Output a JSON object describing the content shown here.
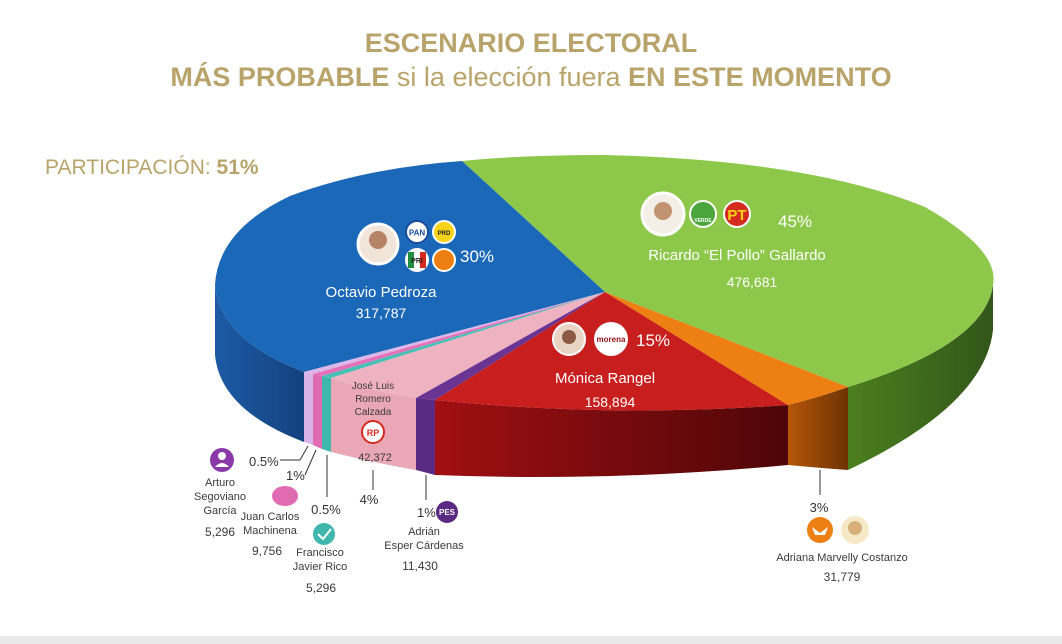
{
  "header": {
    "line1": "ESCENARIO ELECTORAL",
    "line2_bold_a": "MÁS PROBABLE",
    "line2_regular": " si la elección fuera ",
    "line2_bold_b": "EN ESTE MOMENTO"
  },
  "participation": {
    "label": "PARTICIPACIÓN: ",
    "value": "51%"
  },
  "colors": {
    "gold": "#b8a46a",
    "pedroza": "#1b67b8",
    "gallardo": "#8dc84b",
    "rangel": "#c81e1e",
    "costanzo": "#ee7f12",
    "esper": "#5b2a82",
    "romero": "#eaa7b6",
    "rico": "#3fb7ad",
    "machinena": "#e06bb3",
    "segoviano": "#dcb6e8"
  },
  "chart_data": {
    "type": "pie",
    "title": "ESCENARIO ELECTORAL MÁS PROBABLE si la elección fuera EN ESTE MOMENTO",
    "participation": "51%",
    "slices": [
      {
        "name": "Octavio Pedroza",
        "percent": "30%",
        "votes": "317,787",
        "parties": [
          "PAN",
          "PRD",
          "PRI",
          "CP"
        ],
        "color": "#1b67b8"
      },
      {
        "name": "Ricardo “El Pollo” Gallardo",
        "percent": "45%",
        "votes": "476,681",
        "parties": [
          "VERDE",
          "PT"
        ],
        "color": "#8dc84b"
      },
      {
        "name": "Mónica Rangel",
        "percent": "15%",
        "votes": "158,894",
        "parties": [
          "morena"
        ],
        "color": "#c81e1e"
      },
      {
        "name": "Adriana Marvelly Costanzo",
        "percent": "3%",
        "votes": "31,779",
        "parties": [
          "MC"
        ],
        "color": "#ee7f12"
      },
      {
        "name": "Adrián Esper Cárdenas",
        "percent": "1%",
        "votes": "11,430",
        "parties": [
          "PES"
        ],
        "color": "#5b2a82"
      },
      {
        "name": "José Luis Romero Calzada",
        "percent": "4%",
        "votes": "42,372",
        "parties": [
          "RP"
        ],
        "color": "#eaa7b6"
      },
      {
        "name": "Francisco Javier Rico",
        "percent": "0.5%",
        "votes": "5,296",
        "parties": [
          "RSP"
        ],
        "color": "#3fb7ad"
      },
      {
        "name": "Juan Carlos Machinena",
        "percent": "1%",
        "votes": "9,756",
        "parties": [
          "FxM"
        ],
        "color": "#e06bb3"
      },
      {
        "name": "Arturo Segoviano García",
        "percent": "0.5%",
        "votes": "5,296",
        "parties": [
          "independent"
        ],
        "color": "#dcb6e8"
      }
    ]
  },
  "labels": {
    "pedroza": {
      "percent": "30%",
      "name": "Octavio Pedroza",
      "votes": "317,787"
    },
    "gallardo": {
      "percent": "45%",
      "name": "Ricardo “El Pollo” Gallardo",
      "votes": "476,681"
    },
    "rangel": {
      "percent": "15%",
      "name": "Mónica Rangel",
      "votes": "158,894"
    },
    "romero": {
      "name1": "José Luis",
      "name2": "Romero",
      "name3": "Calzada",
      "votes": "42,372",
      "percent": "4%"
    },
    "esper": {
      "percent": "1%",
      "name1": "Adrián",
      "name2": "Esper Cárdenas",
      "votes": "11,430"
    },
    "costanzo": {
      "percent": "3%",
      "name": "Adriana Marvelly Costanzo",
      "votes": "31,779"
    },
    "segoviano": {
      "percent": "0.5%",
      "name1": "Arturo",
      "name2": "Segoviano",
      "name3": "García",
      "votes": "5,296"
    },
    "machinena": {
      "percent": "1%",
      "name1": "Juan Carlos",
      "name2": "Machinena",
      "votes": "9,756"
    },
    "rico": {
      "percent": "0.5%",
      "name1": "Francisco",
      "name2": "Javier Rico",
      "votes": "5,296"
    }
  },
  "logos": {
    "pan": "PAN",
    "prd": "PRD",
    "pri": "PRI",
    "verde": "VERDE",
    "pt": "PT",
    "morena": "morena",
    "rp": "RP",
    "pes": "PES"
  }
}
